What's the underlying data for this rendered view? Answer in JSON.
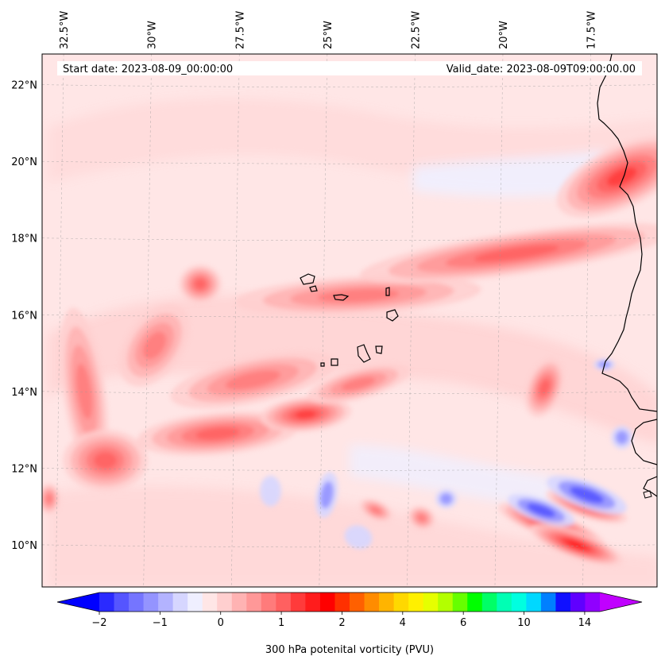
{
  "figure": {
    "start_date": "Start date: 2023-08-09_00:00:00",
    "valid_date": "Valid_date: 2023-08-09T09:00:00.00",
    "colorbar_label": "300 hPa potenital vorticity (PVU)"
  },
  "map_extent": {
    "lon_range": [
      -33.0,
      -15.5
    ],
    "lat_range": [
      8.9,
      22.8
    ]
  },
  "longitude_labels": [
    {
      "text": "32.5°W",
      "lon": -32.5
    },
    {
      "text": "30°W",
      "lon": -30.0
    },
    {
      "text": "27.5°W",
      "lon": -27.5
    },
    {
      "text": "25°W",
      "lon": -25.0
    },
    {
      "text": "22.5°W",
      "lon": -22.5
    },
    {
      "text": "20°W",
      "lon": -20.0
    },
    {
      "text": "17.5°W",
      "lon": -17.5
    }
  ],
  "latitude_labels": [
    {
      "text": "22°N",
      "lat": 22
    },
    {
      "text": "20°N",
      "lat": 20
    },
    {
      "text": "18°N",
      "lat": 18
    },
    {
      "text": "16°N",
      "lat": 16
    },
    {
      "text": "14°N",
      "lat": 14
    },
    {
      "text": "12°N",
      "lat": 12
    },
    {
      "text": "10°N",
      "lat": 10
    }
  ],
  "colorbar": {
    "tick_labels": [
      {
        "text": "−2",
        "value": -2
      },
      {
        "text": "−1",
        "value": -1
      },
      {
        "text": "0",
        "value": 0
      },
      {
        "text": "1",
        "value": 1
      },
      {
        "text": "2",
        "value": 2
      },
      {
        "text": "4",
        "value": 4
      },
      {
        "text": "6",
        "value": 6
      },
      {
        "text": "10",
        "value": 10
      },
      {
        "text": "14",
        "value": 14
      }
    ],
    "colors": [
      "#0000ff",
      "#2a2aff",
      "#5555ff",
      "#7575ff",
      "#9494ff",
      "#b3b3ff",
      "#d6d6ff",
      "#efefff",
      "#ffe6e6",
      "#ffcfcf",
      "#ffb3b3",
      "#ff9898",
      "#ff7b7b",
      "#ff6060",
      "#ff3b3b",
      "#ff1c1c",
      "#ff0000",
      "#ff3000",
      "#ff6000",
      "#ff8c00",
      "#ffb400",
      "#ffd800",
      "#fff000",
      "#e6ff00",
      "#b3ff00",
      "#66ff00",
      "#00ff00",
      "#00ff66",
      "#00ffb4",
      "#00ffe0",
      "#00d8ff",
      "#0080ff",
      "#1010ff",
      "#6000ff",
      "#9000ff",
      "#c000ff"
    ]
  },
  "pv_features": [
    {
      "lon": -31.8,
      "lat": 14.0,
      "rx": 0.6,
      "ry": 2.2,
      "rot": -8,
      "level": 3
    },
    {
      "lon": -31.2,
      "lat": 12.2,
      "rx": 1.2,
      "ry": 0.8,
      "rot": 0,
      "level": 4
    },
    {
      "lon": -29.8,
      "lat": 15.2,
      "rx": 0.8,
      "ry": 1.2,
      "rot": 35,
      "level": 3
    },
    {
      "lon": -28.5,
      "lat": 16.8,
      "rx": 0.6,
      "ry": 0.5,
      "rot": 0,
      "level": 4
    },
    {
      "lon": -28.0,
      "lat": 12.9,
      "rx": 2.3,
      "ry": 0.55,
      "rot": -5,
      "level": 4
    },
    {
      "lon": -27.0,
      "lat": 14.3,
      "rx": 2.4,
      "ry": 0.6,
      "rot": -12,
      "level": 3
    },
    {
      "lon": -25.5,
      "lat": 13.4,
      "rx": 1.3,
      "ry": 0.45,
      "rot": -5,
      "level": 5
    },
    {
      "lon": -24.0,
      "lat": 14.2,
      "rx": 1.5,
      "ry": 0.4,
      "rot": -15,
      "level": 3
    },
    {
      "lon": -24.0,
      "lat": 16.5,
      "rx": 3.5,
      "ry": 0.5,
      "rot": -3,
      "level": 3
    },
    {
      "lon": -19.5,
      "lat": 17.6,
      "rx": 4.5,
      "ry": 0.55,
      "rot": -8,
      "level": 4
    },
    {
      "lon": -16.5,
      "lat": 19.6,
      "rx": 2.0,
      "ry": 0.8,
      "rot": -25,
      "level": 5
    },
    {
      "lon": -18.7,
      "lat": 14.1,
      "rx": 0.5,
      "ry": 0.8,
      "rot": 20,
      "level": 4
    },
    {
      "lon": -18.5,
      "lat": 10.5,
      "rx": 1.6,
      "ry": 0.35,
      "rot": 20,
      "level": 6
    },
    {
      "lon": -17.8,
      "lat": 10.0,
      "rx": 1.4,
      "ry": 0.35,
      "rot": 20,
      "level": 6
    },
    {
      "lon": -17.5,
      "lat": 11.0,
      "rx": 1.2,
      "ry": 0.3,
      "rot": 18,
      "level": 5
    },
    {
      "lon": -23.5,
      "lat": 10.9,
      "rx": 0.5,
      "ry": 0.25,
      "rot": 25,
      "level": 3
    },
    {
      "lon": -22.2,
      "lat": 10.7,
      "rx": 0.4,
      "ry": 0.3,
      "rot": 25,
      "level": 3
    },
    {
      "lon": -32.8,
      "lat": 11.2,
      "rx": 0.3,
      "ry": 0.4,
      "rot": 0,
      "level": 3
    }
  ],
  "negative_features": [
    {
      "lon": -17.5,
      "lat": 11.3,
      "rx": 1.2,
      "ry": 0.35,
      "rot": 20,
      "level": 2
    },
    {
      "lon": -18.8,
      "lat": 10.9,
      "rx": 1.0,
      "ry": 0.3,
      "rot": 20,
      "level": 2
    },
    {
      "lon": -24.9,
      "lat": 11.3,
      "rx": 0.3,
      "ry": 0.6,
      "rot": 10,
      "level": 1
    },
    {
      "lon": -26.5,
      "lat": 11.4,
      "rx": 0.3,
      "ry": 0.4,
      "rot": 0,
      "level": 0
    },
    {
      "lon": -16.5,
      "lat": 12.8,
      "rx": 0.3,
      "ry": 0.3,
      "rot": 0,
      "level": 1
    },
    {
      "lon": -17.0,
      "lat": 14.7,
      "rx": 0.3,
      "ry": 0.15,
      "rot": 0,
      "level": 1
    },
    {
      "lon": -24.0,
      "lat": 10.2,
      "rx": 0.4,
      "ry": 0.3,
      "rot": 20,
      "level": 0
    },
    {
      "lon": -21.5,
      "lat": 11.2,
      "rx": 0.3,
      "ry": 0.25,
      "rot": 0,
      "level": 1
    }
  ]
}
